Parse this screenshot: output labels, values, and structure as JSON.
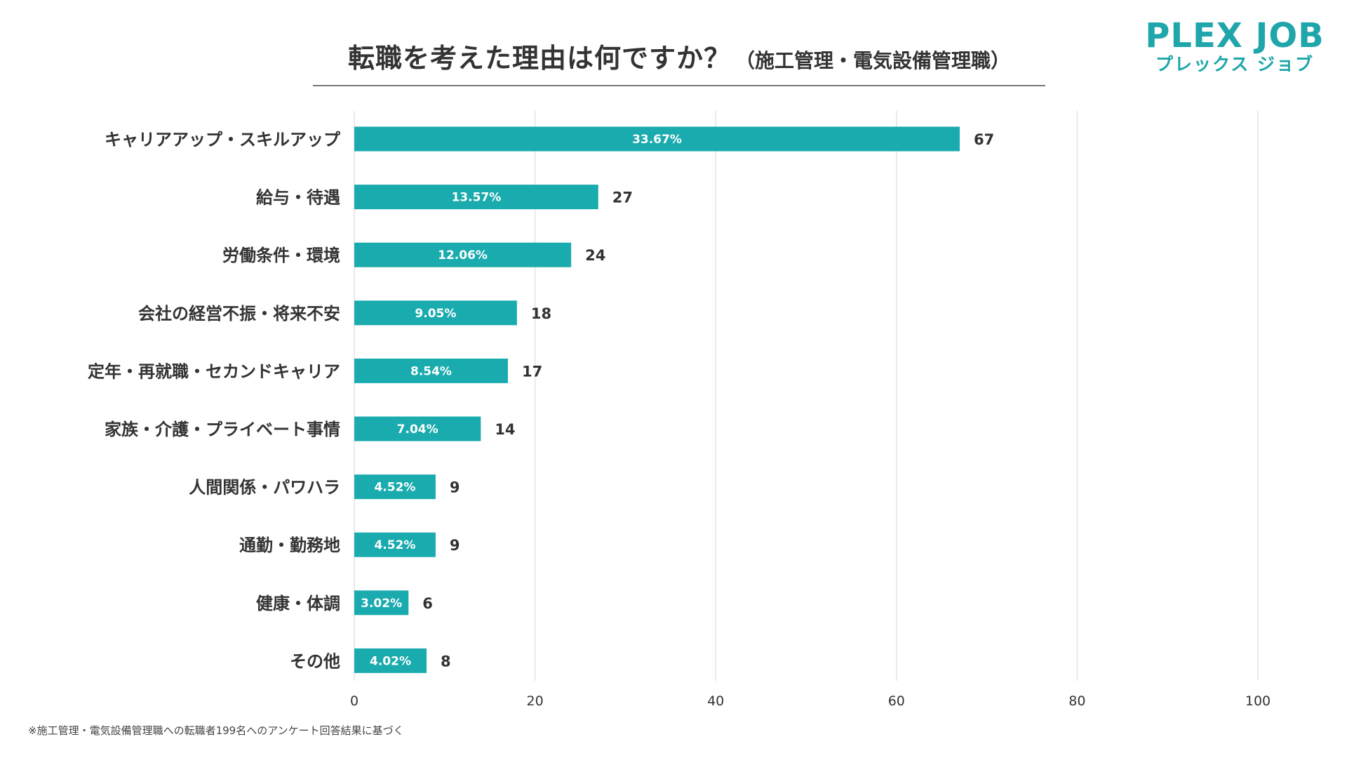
{
  "title": "転職を考えた理由は何ですか？",
  "subtitle": "（施工管理・電気設備管理職）",
  "logo": {
    "main": "PLEX JOB",
    "sub": "プレックス ジョブ"
  },
  "footnote": "※施工管理・電気設備管理職への転職者199名へのアンケート回答結果に基づく",
  "colors": {
    "bar": "#1aabae",
    "grid": "#e3e3e3",
    "text": "#333333",
    "bar_label": "#ffffff"
  },
  "chart_data": {
    "type": "bar",
    "orientation": "horizontal",
    "categories": [
      "キャリアアップ・スキルアップ",
      "給与・待遇",
      "労働条件・環境",
      "会社の経営不振・将来不安",
      "定年・再就職・セカンドキャリア",
      "家族・介護・プライベート事情",
      "人間関係・パワハラ",
      "通勤・勤務地",
      "健康・体調",
      "その他"
    ],
    "values": [
      67,
      27,
      24,
      18,
      17,
      14,
      9,
      9,
      6,
      8
    ],
    "percent_labels": [
      "33.67%",
      "13.57%",
      "12.06%",
      "9.05%",
      "8.54%",
      "7.04%",
      "4.52%",
      "4.52%",
      "3.02%",
      "4.02%"
    ],
    "xlim": [
      0,
      100
    ],
    "xticks": [
      0,
      20,
      40,
      60,
      80,
      100
    ],
    "grid": true
  }
}
